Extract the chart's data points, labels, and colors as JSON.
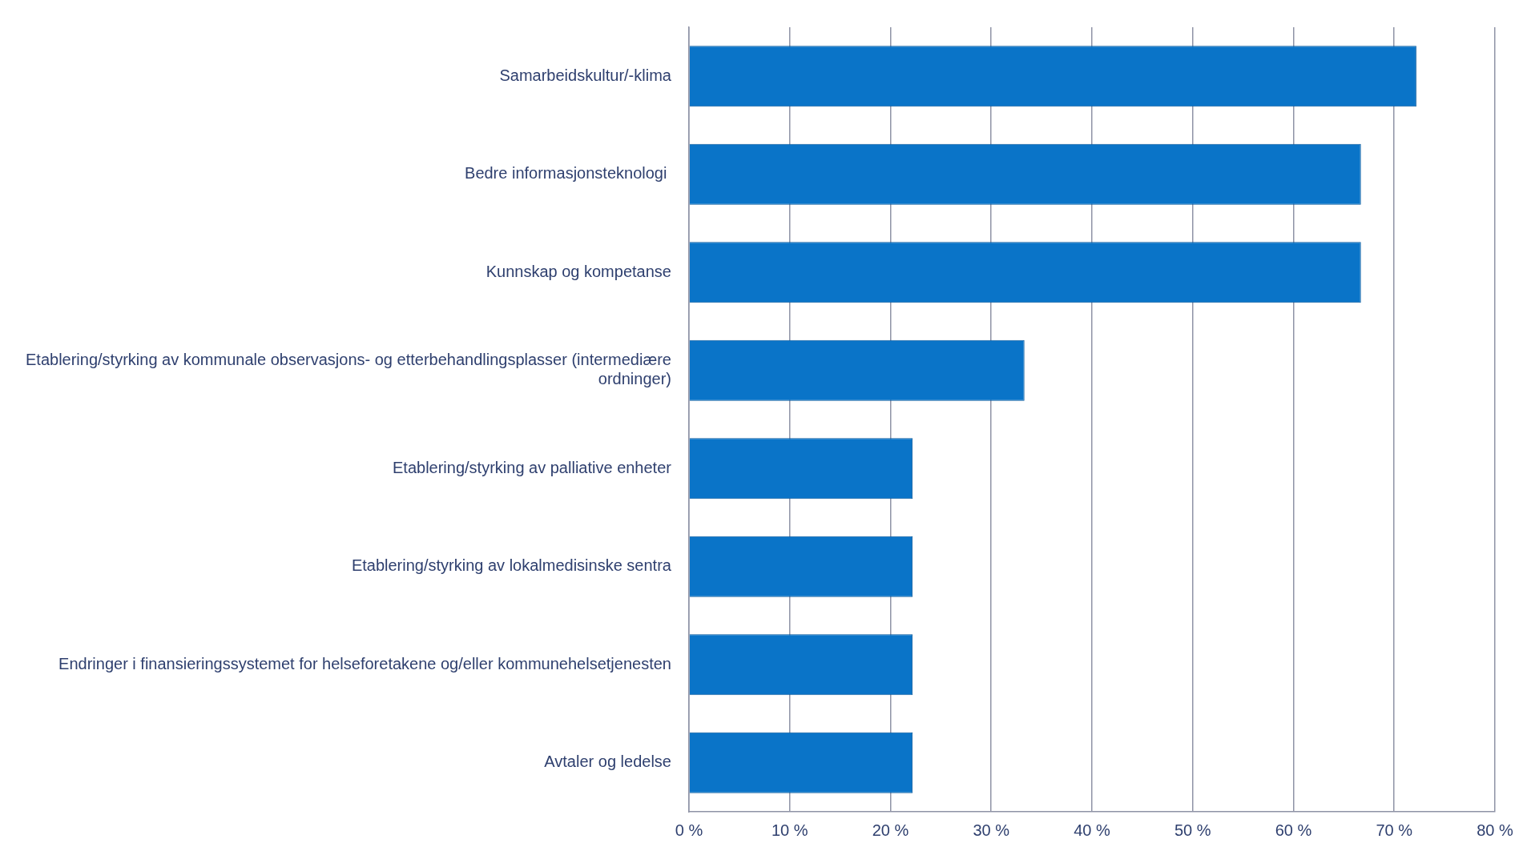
{
  "chart_data": {
    "type": "bar",
    "orientation": "horizontal",
    "categories": [
      "Samarbeidskultur/-klima",
      "Bedre informasjonsteknologi ",
      "Kunnskap og kompetanse",
      "Etablering/styrking av kommunale observasjons- og etterbehandlingsplasser (intermediære ordninger)",
      "Etablering/styrking av palliative enheter",
      "Etablering/styrking av lokalmedisinske sentra",
      "Endringer i finansieringssystemet for helseforetakene og/eller kommunehelsetjenesten",
      "Avtaler og ledelse"
    ],
    "values": [
      72.2,
      66.7,
      66.7,
      33.3,
      22.2,
      22.2,
      22.2,
      22.2
    ],
    "color": "#0a74c8",
    "xlim": [
      0,
      80
    ],
    "xticks": [
      {
        "value": 0,
        "label": "0 %"
      },
      {
        "value": 10,
        "label": "10 %"
      },
      {
        "value": 20,
        "label": "20 %"
      },
      {
        "value": 30,
        "label": "30 %"
      },
      {
        "value": 40,
        "label": "40 %"
      },
      {
        "value": 50,
        "label": "50 %"
      },
      {
        "value": 60,
        "label": "60 %"
      },
      {
        "value": 70,
        "label": "70 %"
      },
      {
        "value": 80,
        "label": "80 %"
      }
    ],
    "grid": "x",
    "legend": false
  }
}
